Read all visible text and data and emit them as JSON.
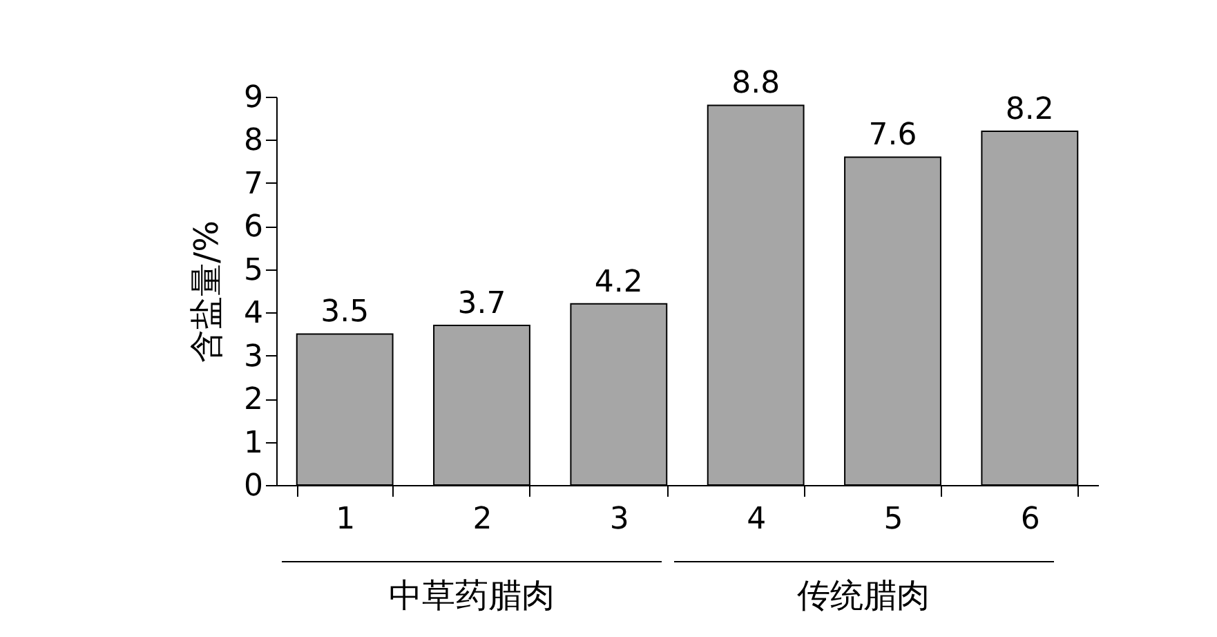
{
  "chart_data": {
    "type": "bar",
    "ylabel": "含盐量/%",
    "categories": [
      "1",
      "2",
      "3",
      "4",
      "5",
      "6"
    ],
    "values": [
      3.5,
      3.7,
      4.2,
      8.8,
      7.6,
      8.2
    ],
    "color": "#a6a6a6",
    "data_labels": true,
    "ylim": [
      0,
      9
    ],
    "yticks": [
      0,
      1,
      2,
      3,
      4,
      5,
      6,
      7,
      8,
      9
    ],
    "grid": false,
    "annotations": [
      "中草药腊肉",
      "传统腊肉"
    ]
  }
}
